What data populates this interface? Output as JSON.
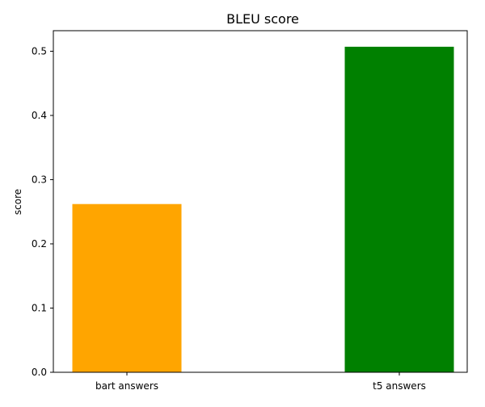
{
  "chart_data": {
    "type": "bar",
    "title": "BLEU score",
    "xlabel": "",
    "ylabel": "score",
    "categories": [
      "bart answers",
      "t5 answers"
    ],
    "values": [
      0.262,
      0.507
    ],
    "colors": [
      "#ffa500",
      "#008000"
    ],
    "ylim": [
      0,
      0.532
    ],
    "yticks": [
      0.0,
      0.1,
      0.2,
      0.3,
      0.4,
      0.5
    ],
    "ytick_labels": [
      "0.0",
      "0.1",
      "0.2",
      "0.3",
      "0.4",
      "0.5"
    ],
    "grid": false,
    "legend": "none"
  }
}
